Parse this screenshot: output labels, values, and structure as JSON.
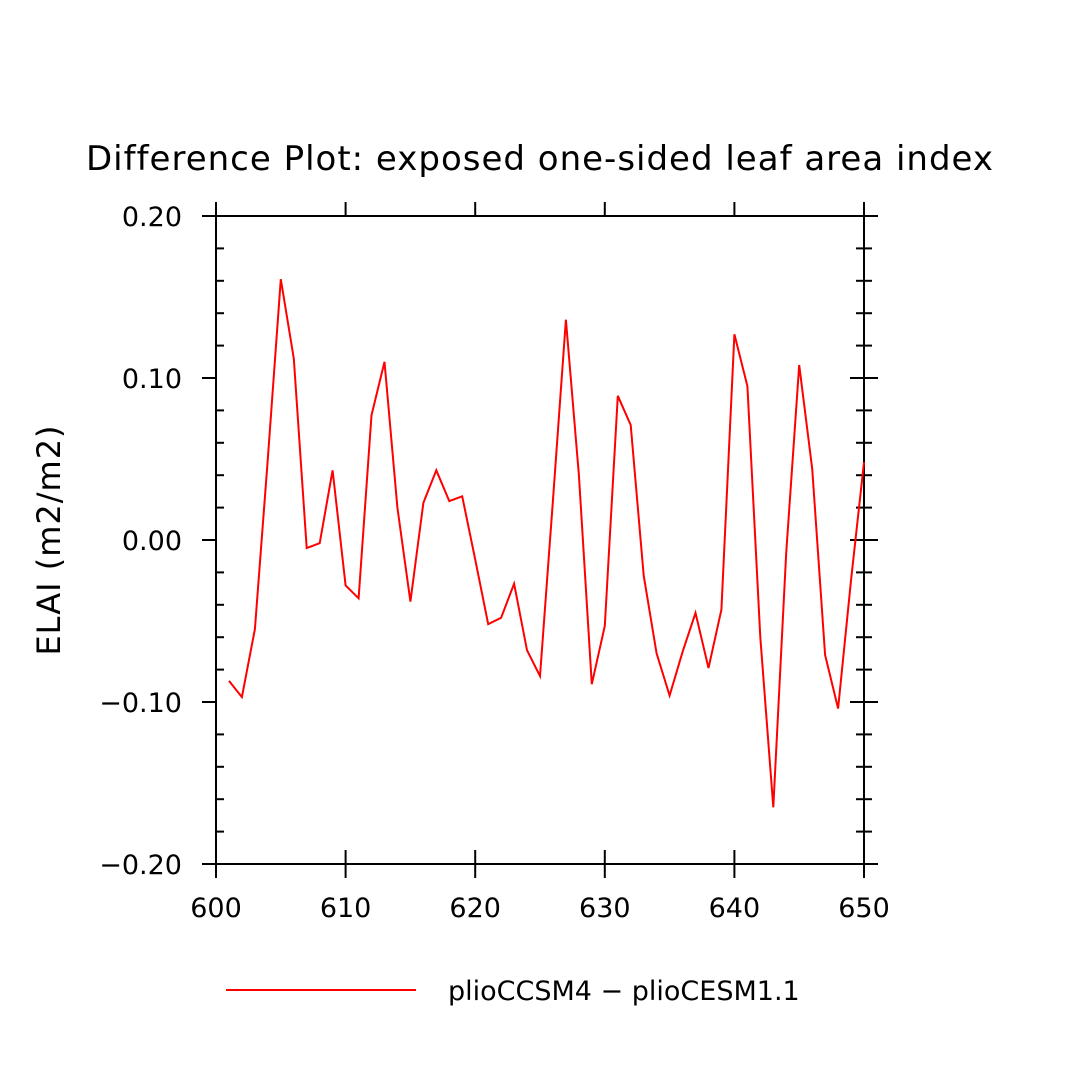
{
  "chart_data": {
    "type": "line",
    "title": "Difference Plot: exposed one-sided leaf area index",
    "xlabel": "",
    "ylabel": "ELAI  (m2/m2)",
    "xlim": [
      600,
      650
    ],
    "ylim": [
      -0.2,
      0.2
    ],
    "x_ticks": [
      600,
      610,
      620,
      630,
      640,
      650
    ],
    "x_tick_labels": [
      "600",
      "610",
      "620",
      "630",
      "640",
      "650"
    ],
    "y_ticks": [
      -0.2,
      -0.1,
      0.0,
      0.1,
      0.2
    ],
    "y_tick_labels": [
      "−0.20",
      "−0.10",
      "0.00",
      "0.10",
      "0.20"
    ],
    "y_minor_step": 0.02,
    "legend_position": "bottom",
    "series": [
      {
        "name": "plioCCSM4 − plioCESM1.1",
        "color": "#ff0000",
        "x": [
          601,
          602,
          603,
          604,
          605,
          606,
          607,
          608,
          609,
          610,
          611,
          612,
          613,
          614,
          615,
          616,
          617,
          618,
          619,
          620,
          621,
          622,
          623,
          624,
          625,
          626,
          627,
          628,
          629,
          630,
          631,
          632,
          633,
          634,
          635,
          636,
          637,
          638,
          639,
          640,
          641,
          642,
          643,
          644,
          645,
          646,
          647,
          648,
          649,
          650
        ],
        "y": [
          -0.087,
          -0.097,
          -0.055,
          0.05,
          0.161,
          0.112,
          -0.005,
          -0.002,
          0.043,
          -0.028,
          -0.036,
          0.077,
          0.11,
          0.02,
          -0.038,
          0.023,
          0.043,
          0.024,
          0.027,
          -0.012,
          -0.052,
          -0.048,
          -0.027,
          -0.068,
          -0.084,
          0.025,
          0.136,
          0.04,
          -0.089,
          -0.053,
          0.089,
          0.071,
          -0.022,
          -0.07,
          -0.096,
          -0.069,
          -0.045,
          -0.079,
          -0.043,
          0.127,
          0.095,
          -0.06,
          -0.165,
          -0.008,
          0.108,
          0.044,
          -0.071,
          -0.104,
          -0.025,
          0.048
        ]
      }
    ]
  }
}
